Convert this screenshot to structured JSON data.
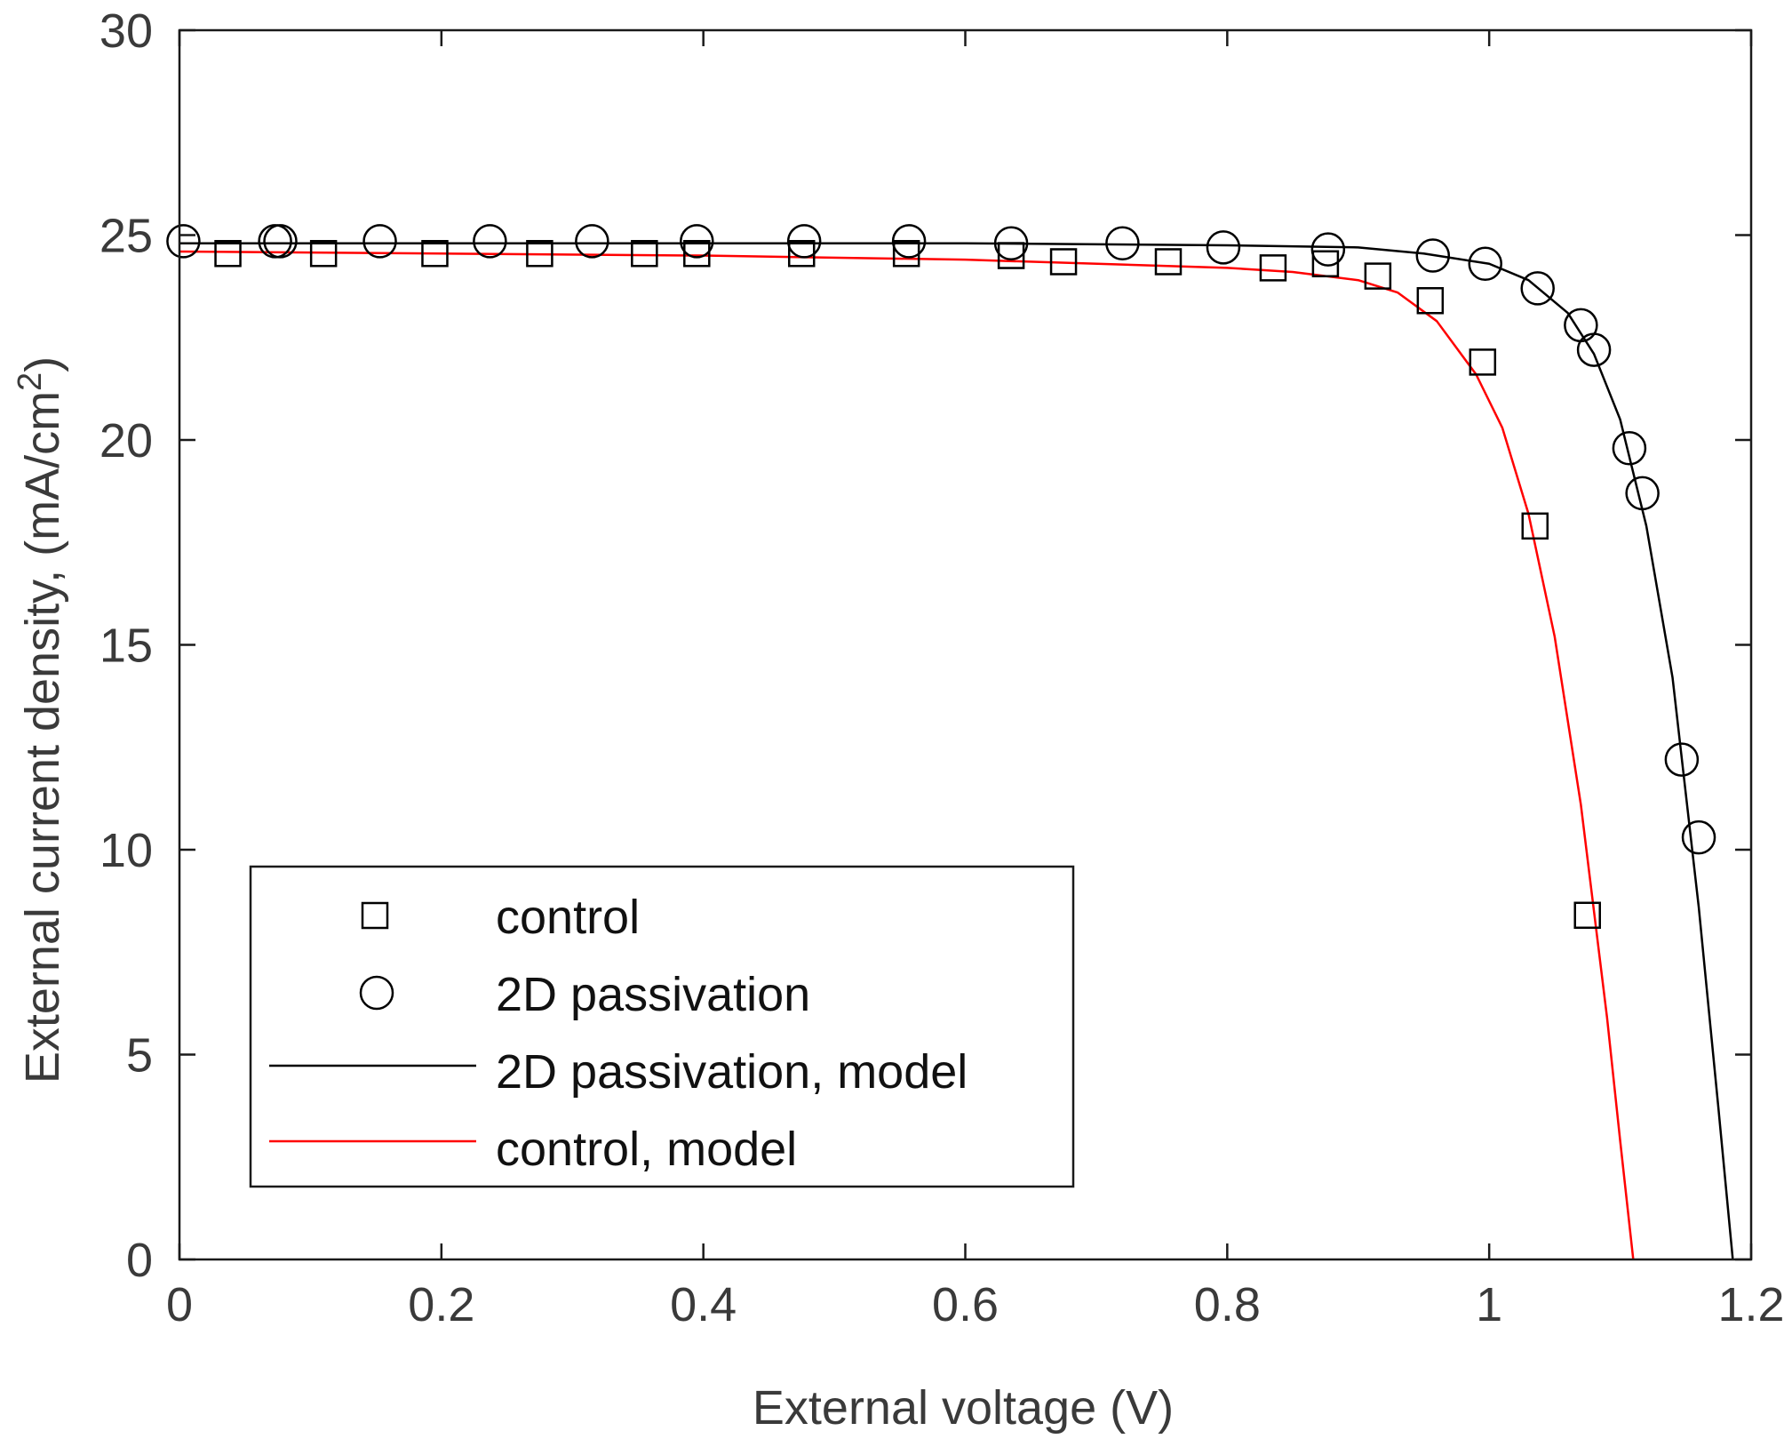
{
  "chart_data": {
    "type": "line",
    "title": "",
    "xlabel": "External voltage (V)",
    "ylabel_main": "External current density, (mA/cm",
    "ylabel_sup": "2",
    "ylabel_end": ")",
    "xlim": [
      0,
      1.2
    ],
    "ylim": [
      0,
      30
    ],
    "grid": false,
    "legend_position": "bottom-left",
    "x_ticks": [
      0,
      0.2,
      0.4,
      0.6,
      0.8,
      1,
      1.2
    ],
    "x_tick_labels": [
      "0",
      "0.2",
      "0.4",
      "0.6",
      "0.8",
      "1",
      "1.2"
    ],
    "y_ticks": [
      0,
      5,
      10,
      15,
      20,
      25,
      30
    ],
    "y_tick_labels": [
      "0",
      "5",
      "10",
      "15",
      "20",
      "25",
      "30"
    ],
    "series": [
      {
        "name": "control",
        "kind": "markers",
        "marker": "square",
        "color": "#000000",
        "x": [
          0.037,
          0.11,
          0.195,
          0.275,
          0.355,
          0.395,
          0.475,
          0.555,
          0.635,
          0.675,
          0.755,
          0.835,
          0.875,
          0.915,
          0.955,
          0.995,
          1.035,
          1.075
        ],
        "y": [
          24.55,
          24.55,
          24.55,
          24.55,
          24.55,
          24.55,
          24.55,
          24.55,
          24.5,
          24.35,
          24.35,
          24.2,
          24.3,
          24.0,
          23.4,
          21.9,
          17.9,
          8.4
        ]
      },
      {
        "name": "2D passivation",
        "kind": "markers",
        "marker": "circle",
        "color": "#000000",
        "x": [
          0.003,
          0.073,
          0.077,
          0.153,
          0.237,
          0.315,
          0.395,
          0.477,
          0.557,
          0.635,
          0.72,
          0.797,
          0.877,
          0.957,
          0.997,
          1.037,
          1.07,
          1.08,
          1.107,
          1.117,
          1.147,
          1.16
        ],
        "y": [
          24.85,
          24.85,
          24.85,
          24.85,
          24.85,
          24.85,
          24.85,
          24.85,
          24.85,
          24.8,
          24.8,
          24.7,
          24.65,
          24.5,
          24.3,
          23.7,
          22.8,
          22.2,
          19.8,
          18.7,
          12.2,
          10.3
        ]
      },
      {
        "name": "2D passivation, model",
        "kind": "line",
        "color": "#000000",
        "x": [
          0,
          0.2,
          0.4,
          0.6,
          0.8,
          0.9,
          0.95,
          1.0,
          1.03,
          1.06,
          1.08,
          1.1,
          1.12,
          1.14,
          1.16,
          1.175,
          1.186
        ],
        "y": [
          24.8,
          24.8,
          24.8,
          24.8,
          24.75,
          24.7,
          24.55,
          24.3,
          23.9,
          23.1,
          22.1,
          20.5,
          17.9,
          14.2,
          8.6,
          3.7,
          0
        ]
      },
      {
        "name": "control, model",
        "kind": "line",
        "color": "#ff0000",
        "x": [
          0,
          0.2,
          0.4,
          0.6,
          0.8,
          0.85,
          0.9,
          0.93,
          0.96,
          0.99,
          1.01,
          1.03,
          1.05,
          1.07,
          1.09,
          1.1,
          1.11
        ],
        "y": [
          24.6,
          24.55,
          24.5,
          24.4,
          24.2,
          24.1,
          23.9,
          23.6,
          22.9,
          21.6,
          20.3,
          18.2,
          15.2,
          11.1,
          5.9,
          2.9,
          0
        ]
      }
    ]
  }
}
